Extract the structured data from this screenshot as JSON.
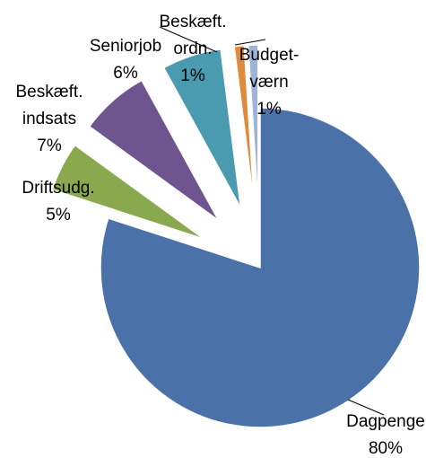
{
  "chart_data": {
    "type": "pie",
    "categories": [
      "Dagpenge",
      "Driftsudg.",
      "Beskæft.\nindsats",
      "Seniorjob",
      "Beskæft.\nordn.",
      "Budget-\nværn"
    ],
    "values": [
      80,
      5,
      7,
      6,
      1,
      1
    ],
    "value_labels": [
      "80%",
      "5%",
      "7%",
      "6%",
      "1%",
      "1%"
    ],
    "colors": [
      "#4a72a8",
      "#8aa84e",
      "#6f558f",
      "#4a9ab0",
      "#e08a3c",
      "#9db3d8"
    ],
    "exploded": [
      false,
      true,
      true,
      true,
      true,
      true
    ]
  }
}
